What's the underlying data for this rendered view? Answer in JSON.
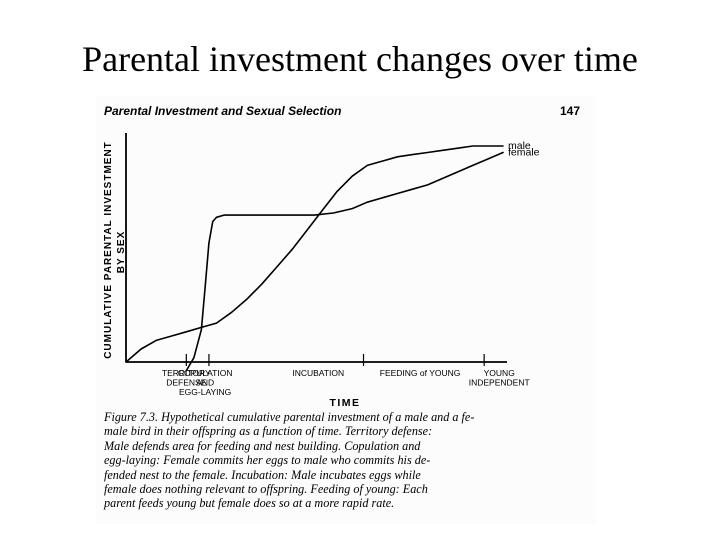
{
  "slide": {
    "title": "Parental investment changes over time"
  },
  "page": {
    "running_head": "Parental Investment and Sexual Selection",
    "page_number": "147"
  },
  "caption": {
    "lines": [
      "Figure 7.3. Hypothetical cumulative parental investment of a male and a fe-",
      "male bird in their offspring as a function of time. Territory defense:",
      "Male defends area for feeding and nest building. Copulation and",
      "egg-laying: Female commits her eggs to male who commits his de-",
      "fended nest to the female. Incubation: Male incubates eggs while",
      "female does nothing relevant to offspring. Feeding of young: Each",
      "parent feeds young but female does so at a more rapid rate."
    ]
  },
  "chart_data": {
    "type": "line",
    "title": "",
    "xlabel": "TIME",
    "ylabel_lines": [
      "CUMULATIVE PARENTAL INVESTMENT",
      "BY SEX"
    ],
    "xlim": [
      0,
      100
    ],
    "ylim": [
      0,
      100
    ],
    "grid": false,
    "x_ticks": [
      {
        "x": 16,
        "lines": [
          "TERRITORY",
          "DEFENSE"
        ]
      },
      {
        "x": 21,
        "lines": [
          "COPULATION",
          "AND",
          "EGG-LAYING"
        ]
      },
      {
        "x": 51,
        "lines": [
          "INCUBATION"
        ]
      },
      {
        "x": 78,
        "lines": [
          "FEEDING of YOUNG"
        ]
      },
      {
        "x": 99,
        "lines": [
          "YOUNG",
          "INDEPENDENT"
        ]
      }
    ],
    "tick_marks": [
      16,
      22,
      63,
      95
    ],
    "series": [
      {
        "name": "male",
        "x": [
          0,
          4,
          8,
          12,
          16,
          20,
          24,
          28,
          32,
          36,
          40,
          44,
          48,
          52,
          56,
          60,
          64,
          68,
          72,
          76,
          80,
          84,
          88,
          92,
          96,
          100
        ],
        "y": [
          0,
          6,
          10,
          12,
          14,
          16,
          18,
          23,
          29,
          36,
          44,
          52,
          61,
          70,
          79,
          86,
          91,
          93,
          95,
          96,
          97,
          98,
          99,
          100,
          100,
          100
        ]
      },
      {
        "name": "female",
        "x": [
          16,
          18,
          20,
          21,
          22,
          23,
          24,
          26,
          28,
          30,
          35,
          40,
          45,
          50,
          55,
          60,
          64,
          68,
          72,
          76,
          80,
          84,
          88,
          92,
          96,
          100
        ],
        "y": [
          -4,
          2,
          15,
          35,
          55,
          65,
          67,
          68,
          68,
          68,
          68,
          68,
          68,
          68,
          69,
          71,
          74,
          76,
          78,
          80,
          82,
          85,
          88,
          91,
          94,
          97
        ]
      }
    ]
  }
}
